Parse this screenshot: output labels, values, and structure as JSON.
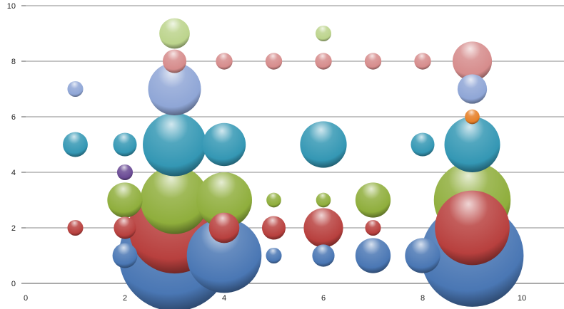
{
  "chart_data": {
    "type": "bubble",
    "xlim": [
      0,
      11
    ],
    "ylim": [
      0,
      10
    ],
    "x_ticks": [
      "0",
      "2",
      "4",
      "6",
      "8",
      "10"
    ],
    "y_ticks": [
      "0",
      "2",
      "4",
      "6",
      "8",
      "10"
    ],
    "grid": "horizontal",
    "series": [
      {
        "color": "#4a77b4",
        "points": [
          {
            "x": 2,
            "y": 1,
            "size": 20
          },
          {
            "x": 3,
            "y": 1,
            "size": 400
          },
          {
            "x": 4,
            "y": 1,
            "size": 180
          },
          {
            "x": 5,
            "y": 1,
            "size": 8
          },
          {
            "x": 6,
            "y": 1,
            "size": 16
          },
          {
            "x": 7,
            "y": 1,
            "size": 40
          },
          {
            "x": 8,
            "y": 1,
            "size": 40
          },
          {
            "x": 9,
            "y": 1,
            "size": 340
          }
        ]
      },
      {
        "color": "#b8403e",
        "points": [
          {
            "x": 1,
            "y": 2,
            "size": 8
          },
          {
            "x": 2,
            "y": 2,
            "size": 16
          },
          {
            "x": 3,
            "y": 2,
            "size": 270
          },
          {
            "x": 4,
            "y": 2,
            "size": 30
          },
          {
            "x": 5,
            "y": 2,
            "size": 18
          },
          {
            "x": 6,
            "y": 2,
            "size": 50
          },
          {
            "x": 7,
            "y": 2,
            "size": 8
          },
          {
            "x": 9,
            "y": 2,
            "size": 180
          }
        ]
      },
      {
        "color": "#8fae3c",
        "points": [
          {
            "x": 2,
            "y": 3,
            "size": 40
          },
          {
            "x": 3,
            "y": 3,
            "size": 150
          },
          {
            "x": 4,
            "y": 3,
            "size": 100
          },
          {
            "x": 5,
            "y": 3,
            "size": 7
          },
          {
            "x": 6,
            "y": 3,
            "size": 7
          },
          {
            "x": 7,
            "y": 3,
            "size": 40
          },
          {
            "x": 9,
            "y": 3,
            "size": 190
          }
        ]
      },
      {
        "color": "#6a4a94",
        "points": [
          {
            "x": 2,
            "y": 4,
            "size": 8
          }
        ]
      },
      {
        "color": "#3497b4",
        "points": [
          {
            "x": 1,
            "y": 5,
            "size": 20
          },
          {
            "x": 2,
            "y": 5,
            "size": 18
          },
          {
            "x": 3,
            "y": 5,
            "size": 130
          },
          {
            "x": 4,
            "y": 5,
            "size": 60
          },
          {
            "x": 6,
            "y": 5,
            "size": 70
          },
          {
            "x": 8,
            "y": 5,
            "size": 18
          },
          {
            "x": 9,
            "y": 5,
            "size": 100
          }
        ]
      },
      {
        "color": "#e68028",
        "points": [
          {
            "x": 9,
            "y": 6,
            "size": 7
          }
        ]
      },
      {
        "color": "#8fa6d6",
        "points": [
          {
            "x": 1,
            "y": 7,
            "size": 8
          },
          {
            "x": 3,
            "y": 7,
            "size": 90
          },
          {
            "x": 9,
            "y": 7,
            "size": 28
          }
        ]
      },
      {
        "color": "#d68c8c",
        "points": [
          {
            "x": 3,
            "y": 8,
            "size": 18
          },
          {
            "x": 4,
            "y": 8,
            "size": 9
          },
          {
            "x": 5,
            "y": 8,
            "size": 9
          },
          {
            "x": 6,
            "y": 8,
            "size": 9
          },
          {
            "x": 7,
            "y": 8,
            "size": 9
          },
          {
            "x": 8,
            "y": 8,
            "size": 9
          },
          {
            "x": 9,
            "y": 8,
            "size": 50
          }
        ]
      },
      {
        "color": "#bcd48c",
        "points": [
          {
            "x": 3,
            "y": 9,
            "size": 30
          },
          {
            "x": 6,
            "y": 9,
            "size": 8
          }
        ]
      }
    ]
  }
}
